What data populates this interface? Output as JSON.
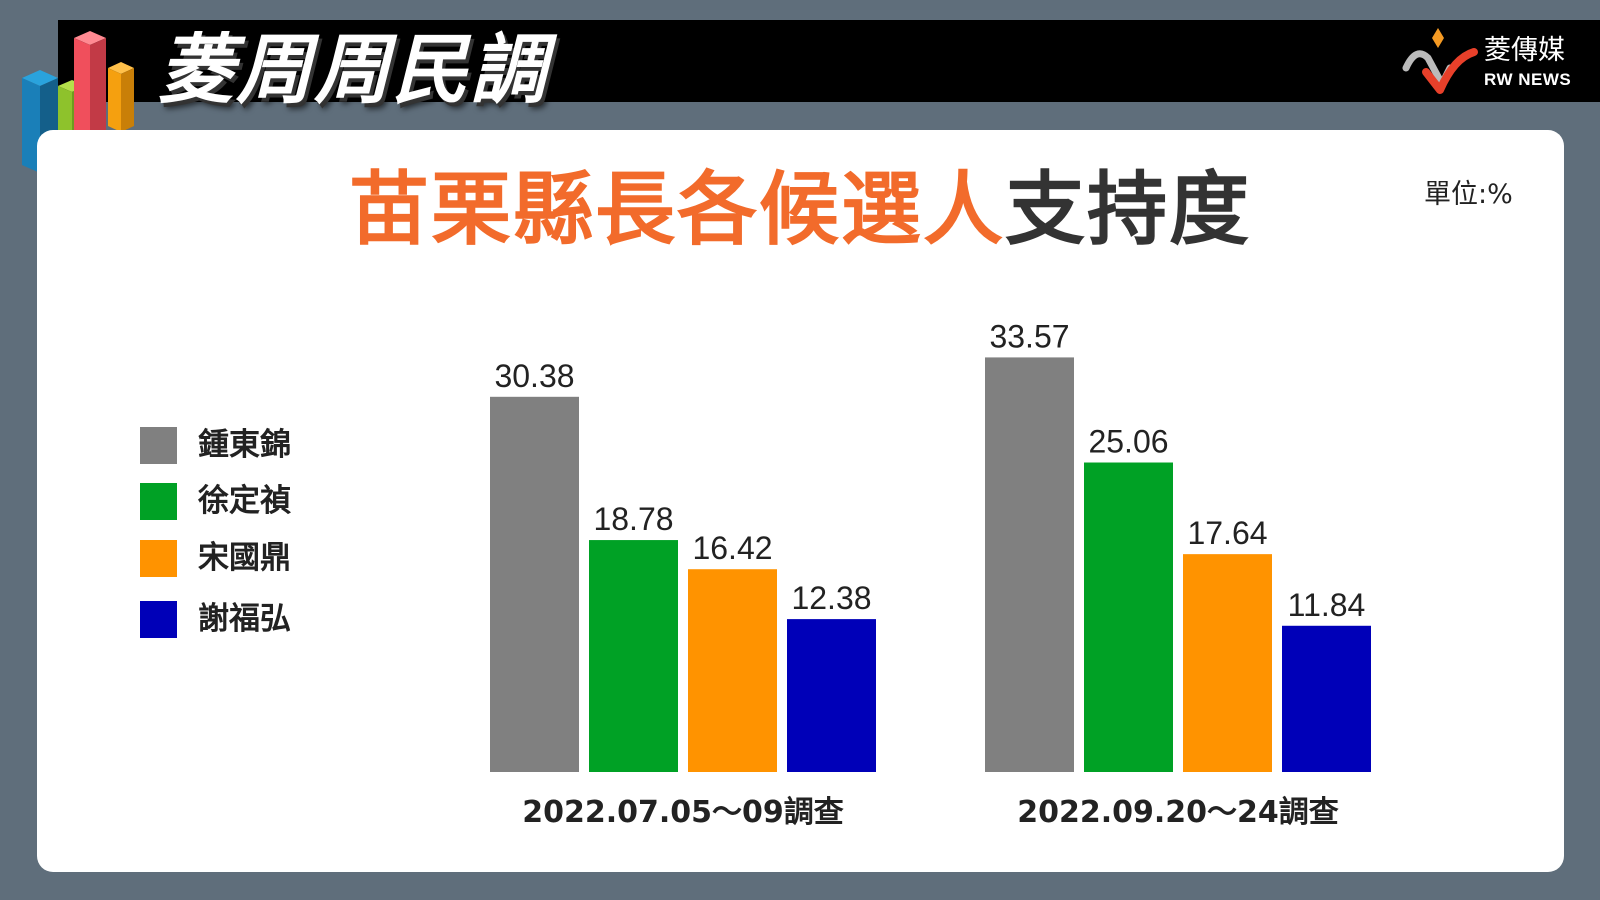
{
  "header": {
    "title": "菱周周民調",
    "brand_name": "菱傳媒",
    "brand_sub": "RW NEWS"
  },
  "chart_title_orange": "苗栗縣長各候選人",
  "chart_title_dark": "支持度",
  "unit_label": "單位:%",
  "chart_data": {
    "type": "bar",
    "title": "苗栗縣長各候選人支持度",
    "unit": "單位:%",
    "categories": [
      "2022.07.05～09調查",
      "2022.09.20～24調查"
    ],
    "series": [
      {
        "name": "鍾東錦",
        "color": "#808080",
        "values": [
          30.38,
          33.57
        ]
      },
      {
        "name": "徐定禎",
        "color": "#00a125",
        "values": [
          18.78,
          25.06
        ]
      },
      {
        "name": "宋國鼎",
        "color": "#ff9300",
        "values": [
          16.42,
          17.64
        ]
      },
      {
        "name": "謝福弘",
        "color": "#0000b8",
        "values": [
          12.38,
          11.84
        ]
      }
    ],
    "value_labels": [
      [
        "30.38",
        "33.57"
      ],
      [
        "18.78",
        "25.06"
      ],
      [
        "16.42",
        "17.64"
      ],
      [
        "12.38",
        "11.84"
      ]
    ],
    "ylim": [
      0,
      40
    ],
    "legend_position": "left",
    "grid": false
  }
}
